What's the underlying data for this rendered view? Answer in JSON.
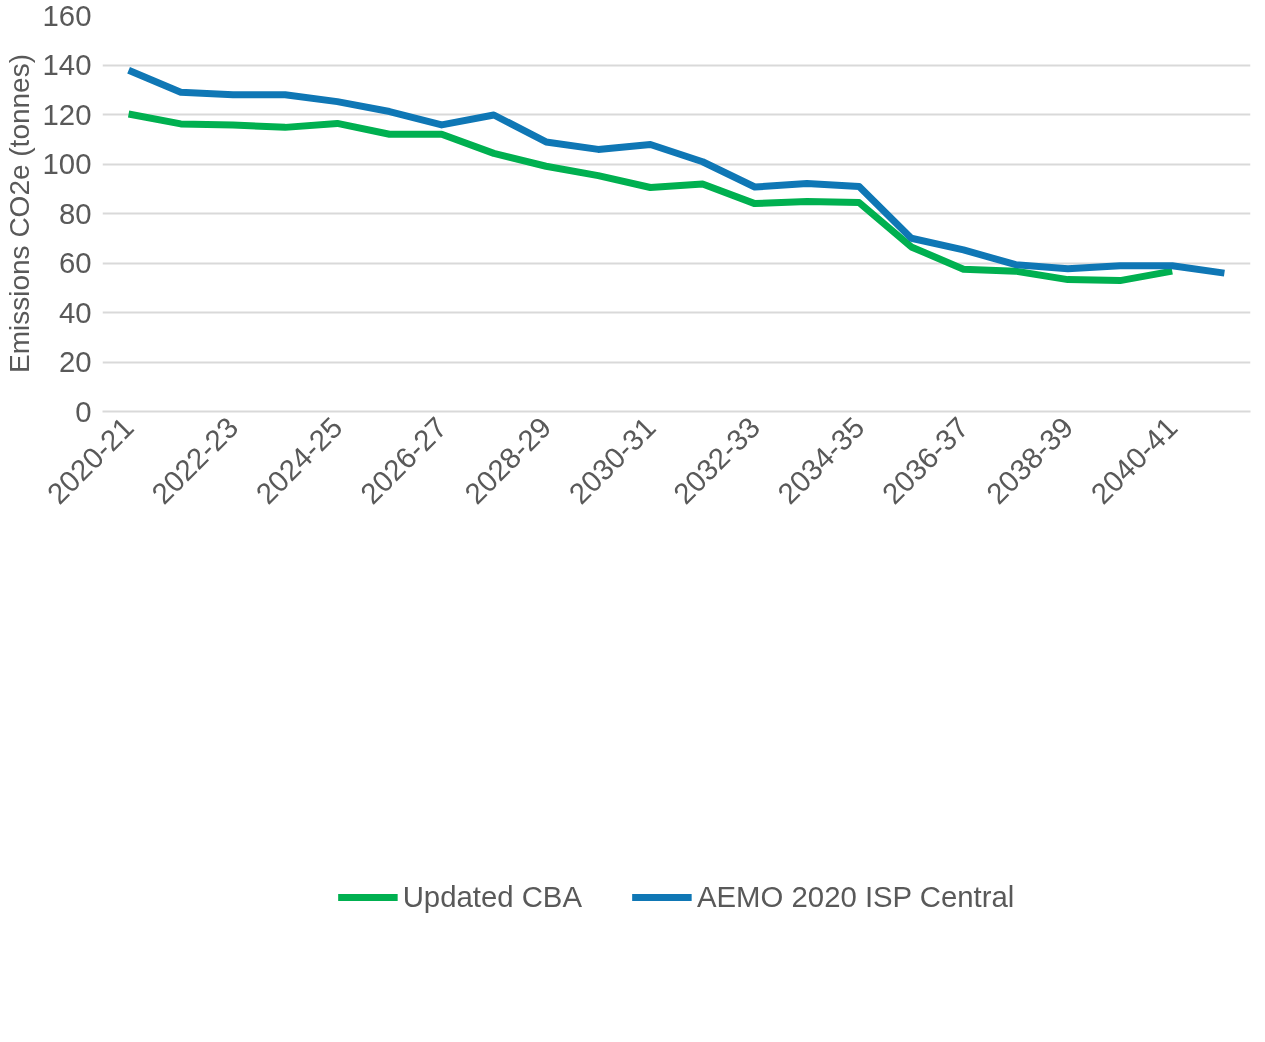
{
  "chart_data": {
    "type": "line",
    "ylabel": "Emissions CO2e (tonnes)",
    "categories": [
      "2020-21",
      null,
      "2022-23",
      null,
      "2024-25",
      null,
      "2026-27",
      null,
      "2028-29",
      null,
      "2030-31",
      null,
      "2032-33",
      null,
      "2034-35",
      null,
      "2036-37",
      null,
      "2038-39",
      null,
      "2040-41",
      null
    ],
    "series": [
      {
        "name": "Updated CBA",
        "color": "#00b050",
        "values": [
          120.2,
          116.2,
          115.8,
          114.8,
          116.4,
          112,
          112,
          104.3,
          99.1,
          95.3,
          90.5,
          91.9,
          84,
          84.8,
          84.4,
          66.5,
          57.5,
          56.7,
          53.3,
          52.9,
          56.7,
          null
        ]
      },
      {
        "name": "AEMO 2020 ISP Central",
        "color": "#0f77b5",
        "values": [
          137.9,
          129,
          128,
          128,
          125.2,
          121.2,
          115.8,
          119.8,
          108.9,
          105.9,
          107.9,
          100.9,
          90.7,
          92.1,
          90.9,
          70,
          65.3,
          59.3,
          57.7,
          58.9,
          58.9,
          55.9
        ]
      }
    ],
    "ylim": [
      0,
      160
    ],
    "yticks": [
      0,
      20,
      40,
      60,
      80,
      100,
      120,
      140,
      160
    ],
    "grid": "y",
    "legend": "bottom",
    "marker": "none",
    "line_style": "solid"
  }
}
